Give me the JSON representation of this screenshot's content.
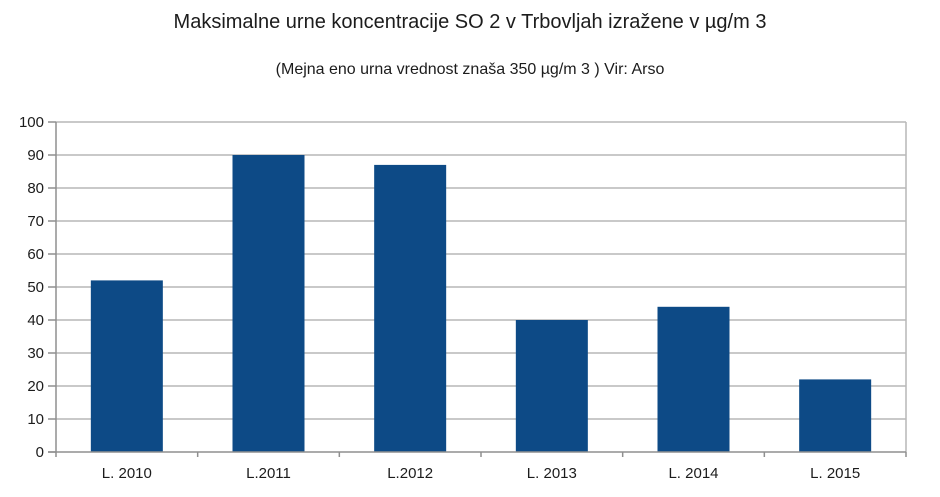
{
  "chart": {
    "title": "Maksimalne urne koncentracije SO 2 v Trbovljah izražene v µg/m 3",
    "subtitle": "(Mejna eno urna vrednost znaša 350 µg/m 3 ) Vir: Arso"
  },
  "chart_data": {
    "type": "bar",
    "title": "Maksimalne urne koncentracije SO 2 v Trbovljah izražene v µg/m 3",
    "subtitle": "(Mejna eno urna vrednost znaša 350 µg/m 3 ) Vir: Arso",
    "categories": [
      "L. 2010",
      "L.2011",
      "L.2012",
      "L. 2013",
      "L. 2014",
      "L. 2015"
    ],
    "values": [
      52,
      90,
      87,
      40,
      44,
      22
    ],
    "xlabel": "",
    "ylabel": "",
    "ylim": [
      0,
      100
    ],
    "ytick_step": 10,
    "grid": true,
    "legend_position": "none",
    "colors": {
      "bar": "#0d4a86",
      "gridline": "#b7b7b7",
      "axis": "#8f8f8f",
      "text": "#1c1c1c",
      "background": "#ffffff"
    }
  }
}
